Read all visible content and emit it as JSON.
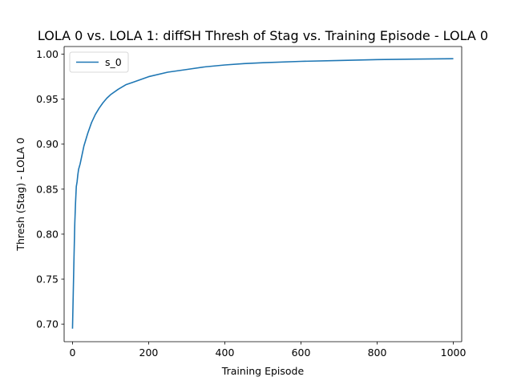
{
  "chart_data": {
    "type": "line",
    "title": "LOLA 0 vs. LOLA 1: diffSH Thresh of Stag vs. Training Episode - LOLA 0",
    "xlabel": "Training Episode",
    "ylabel": "Thresh (Stag) - LOLA 0",
    "xlim": [
      -22,
      1022
    ],
    "ylim": [
      0.6805,
      1.0085
    ],
    "xticks": [
      0,
      200,
      400,
      600,
      800,
      1000
    ],
    "xtick_labels": [
      "0",
      "200",
      "400",
      "600",
      "800",
      "1000"
    ],
    "yticks": [
      0.7,
      0.75,
      0.8,
      0.85,
      0.9,
      0.95,
      1.0
    ],
    "ytick_labels": [
      "0.70",
      "0.75",
      "0.80",
      "0.85",
      "0.90",
      "0.95",
      "1.00"
    ],
    "grid": false,
    "legend": {
      "position": "upper-left"
    },
    "series": [
      {
        "name": "s_0",
        "color": "#1f77b4",
        "x": [
          0,
          2,
          4,
          6,
          8,
          10,
          12,
          14,
          16,
          20,
          25,
          30,
          40,
          50,
          60,
          70,
          80,
          90,
          100,
          120,
          140,
          160,
          180,
          200,
          250,
          300,
          350,
          400,
          450,
          500,
          600,
          700,
          800,
          900,
          1000
        ],
        "y": [
          0.695,
          0.735,
          0.775,
          0.812,
          0.835,
          0.853,
          0.858,
          0.866,
          0.872,
          0.878,
          0.888,
          0.898,
          0.912,
          0.924,
          0.933,
          0.94,
          0.946,
          0.951,
          0.955,
          0.961,
          0.966,
          0.969,
          0.972,
          0.975,
          0.98,
          0.983,
          0.986,
          0.988,
          0.9895,
          0.9905,
          0.992,
          0.993,
          0.994,
          0.9945,
          0.995
        ]
      }
    ]
  }
}
